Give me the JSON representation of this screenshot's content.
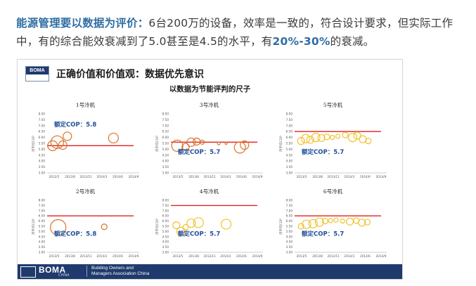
{
  "paragraph": {
    "lead": "能源管理要以数据为评价：",
    "body": "6台200万的设备，效率是一致的，符合设计要求，但实际工作中，有的综合能效衰减到了5.0甚至是4.5的水平，有",
    "highlight": "20%-30%",
    "tail": "的衰减。"
  },
  "slide": {
    "logo_text": "BOMA",
    "title": "正确价值和价值观：数据优先意识",
    "subtitle": "以数据为节能评判的尺子",
    "footer": {
      "brand": "BOMA",
      "brand_sub": "CHINA",
      "org_line1": "Building Owners and",
      "org_line2": "Managers Association China"
    }
  },
  "colors": {
    "text": "#3a3a3a",
    "highlight_blue": "#2f6ea3",
    "footer_navy": "#1f3a6d",
    "reference_line": "#e02020",
    "bubble_orange": "#d9742b",
    "bubble_yellow": "#f2c12e",
    "annotation": "#1f4e9a"
  },
  "chart_data": [
    {
      "type": "scatter",
      "title": "1号冷机",
      "ylabel": "月平均COP",
      "ylim": [
        3.0,
        8.0
      ],
      "yticks": [
        "8.00",
        "7.50",
        "7.00",
        "6.50",
        "6.00",
        "5.50",
        "5.00",
        "4.50",
        "4.00",
        "3.50",
        "3.00"
      ],
      "xticks": [
        "2012/5",
        "2012/8",
        "2012/11",
        "2014/3",
        "2014/6",
        "2014/9"
      ],
      "reference_value": 5.3,
      "annotation": "额定COP：5.8",
      "color": "orange",
      "points": [
        {
          "x": 0.06,
          "y": 5.3,
          "r": 7
        },
        {
          "x": 0.11,
          "y": 5.6,
          "r": 9
        },
        {
          "x": 0.17,
          "y": 5.35,
          "r": 6
        },
        {
          "x": 0.22,
          "y": 6.1,
          "r": 6
        },
        {
          "x": 0.72,
          "y": 5.95,
          "r": 7
        }
      ]
    },
    {
      "type": "scatter",
      "title": "2号冷机",
      "ylabel": "月平均COP",
      "ylim": [
        3.0,
        8.0
      ],
      "yticks": [
        "8.00",
        "7.50",
        "7.00",
        "6.50",
        "6.00",
        "5.50",
        "5.00",
        "4.50",
        "4.00",
        "3.50",
        "3.00"
      ],
      "xticks": [
        "2013/5",
        "2013/8",
        "2013/11",
        "2014/3",
        "2014/6",
        "2014/9"
      ],
      "reference_value": 6.5,
      "annotation": "额定COP：5.8",
      "color": "orange",
      "points": [
        {
          "x": 0.12,
          "y": 5.4,
          "r": 11
        },
        {
          "x": 0.62,
          "y": 5.45,
          "r": 4
        }
      ]
    },
    {
      "type": "scatter",
      "title": "3号冷机",
      "ylabel": "月平均COP",
      "ylim": [
        3.0,
        8.0
      ],
      "yticks": [
        "8.00",
        "7.50",
        "7.00",
        "6.50",
        "6.00",
        "5.50",
        "5.00",
        "4.50",
        "4.00",
        "3.50",
        "3.00"
      ],
      "xticks": [
        "2013/5",
        "2013/8",
        "2013/11",
        "2014/3",
        "2014/6",
        "2014/9"
      ],
      "reference_value": 5.6,
      "annotation": "额定COP：5.7",
      "color": "orange",
      "points": [
        {
          "x": 0.07,
          "y": 5.3,
          "r": 8
        },
        {
          "x": 0.16,
          "y": 5.2,
          "r": 5
        },
        {
          "x": 0.22,
          "y": 5.6,
          "r": 6
        },
        {
          "x": 0.28,
          "y": 5.65,
          "r": 5
        },
        {
          "x": 0.34,
          "y": 5.6,
          "r": 3
        },
        {
          "x": 0.52,
          "y": 5.5,
          "r": 2
        },
        {
          "x": 0.6,
          "y": 5.5,
          "r": 1.5
        },
        {
          "x": 0.75,
          "y": 5.15,
          "r": 8
        },
        {
          "x": 0.8,
          "y": 5.35,
          "r": 6
        }
      ]
    },
    {
      "type": "scatter",
      "title": "4号冷机",
      "ylabel": "月平均COP",
      "ylim": [
        3.0,
        8.0
      ],
      "yticks": [
        "8.00",
        "7.50",
        "7.00",
        "6.50",
        "6.00",
        "5.50",
        "5.00",
        "4.50",
        "4.00",
        "3.50",
        "3.00"
      ],
      "xticks": [
        "2013/5",
        "2013/8",
        "2013/11",
        "2014/3",
        "2014/6",
        "2014/9"
      ],
      "reference_value": 7.5,
      "annotation": "额定COP：5.7",
      "color": "yellow",
      "points": [
        {
          "x": 0.06,
          "y": 5.6,
          "r": 5
        },
        {
          "x": 0.11,
          "y": 5.0,
          "r": 6
        },
        {
          "x": 0.16,
          "y": 5.4,
          "r": 4
        },
        {
          "x": 0.22,
          "y": 5.8,
          "r": 6
        },
        {
          "x": 0.3,
          "y": 5.85,
          "r": 7
        },
        {
          "x": 0.6,
          "y": 5.7,
          "r": 7
        }
      ]
    },
    {
      "type": "scatter",
      "title": "5号冷机",
      "ylabel": "月平均COP",
      "ylim": [
        3.0,
        8.0
      ],
      "yticks": [
        "8.00",
        "7.50",
        "7.00",
        "6.50",
        "6.00",
        "5.50",
        "5.00",
        "4.50",
        "4.00",
        "3.50",
        "3.00"
      ],
      "xticks": [
        "2013/5",
        "2013/8",
        "2013/11",
        "2014/3",
        "2014/6",
        "2014/9"
      ],
      "reference_value": 6.5,
      "annotation": "额定COP：5.7",
      "color": "yellow",
      "points": [
        {
          "x": 0.07,
          "y": 5.7,
          "r": 5
        },
        {
          "x": 0.12,
          "y": 5.9,
          "r": 6
        },
        {
          "x": 0.17,
          "y": 5.8,
          "r": 5
        },
        {
          "x": 0.23,
          "y": 6.0,
          "r": 6
        },
        {
          "x": 0.29,
          "y": 5.95,
          "r": 5
        },
        {
          "x": 0.35,
          "y": 6.05,
          "r": 4
        },
        {
          "x": 0.41,
          "y": 6.0,
          "r": 3
        },
        {
          "x": 0.47,
          "y": 6.1,
          "r": 3
        },
        {
          "x": 0.55,
          "y": 6.2,
          "r": 4
        },
        {
          "x": 0.63,
          "y": 6.0,
          "r": 6
        },
        {
          "x": 0.68,
          "y": 6.15,
          "r": 5
        },
        {
          "x": 0.74,
          "y": 5.85,
          "r": 5
        },
        {
          "x": 0.8,
          "y": 5.7,
          "r": 4
        }
      ]
    },
    {
      "type": "scatter",
      "title": "6号冷机",
      "ylabel": "月平均COP",
      "ylim": [
        3.0,
        8.0
      ],
      "yticks": [
        "8.00",
        "7.50",
        "7.00",
        "6.50",
        "6.00",
        "5.50",
        "5.00",
        "4.50",
        "4.00",
        "3.50",
        "3.00"
      ],
      "xticks": [
        "2013/5",
        "2013/8",
        "2013/11",
        "2014/3",
        "2014/6",
        "2014/9"
      ],
      "reference_value": 6.5,
      "annotation": "额定COP：5.7",
      "color": "yellow",
      "points": [
        {
          "x": 0.07,
          "y": 5.5,
          "r": 4
        },
        {
          "x": 0.13,
          "y": 5.7,
          "r": 6
        },
        {
          "x": 0.2,
          "y": 5.75,
          "r": 6
        },
        {
          "x": 0.27,
          "y": 5.9,
          "r": 6
        },
        {
          "x": 0.33,
          "y": 6.0,
          "r": 4
        },
        {
          "x": 0.39,
          "y": 6.05,
          "r": 3
        },
        {
          "x": 0.45,
          "y": 6.1,
          "r": 3
        },
        {
          "x": 0.52,
          "y": 6.0,
          "r": 3
        },
        {
          "x": 0.6,
          "y": 5.95,
          "r": 5
        },
        {
          "x": 0.67,
          "y": 6.05,
          "r": 4
        },
        {
          "x": 0.73,
          "y": 5.85,
          "r": 5
        },
        {
          "x": 0.79,
          "y": 5.9,
          "r": 4
        }
      ]
    }
  ]
}
